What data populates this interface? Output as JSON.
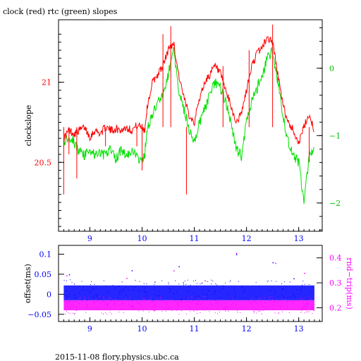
{
  "title": "clock (red) rtc (green) slopes",
  "footer": "2015-11-08 flory.physics.ubc.ca",
  "colors": {
    "red": "#ff0000",
    "green": "#00e000",
    "blue": "#0000ff",
    "magenta": "#ff00ff",
    "axis": "#000000"
  },
  "chart_data": [
    {
      "type": "line",
      "title": "clock (red) rtc (green) slopes",
      "ylabel": "clockslope",
      "xlim": [
        8.4,
        13.45
      ],
      "ylim": [
        20.07,
        21.39
      ],
      "y2lim": [
        -2.42,
        0.72
      ],
      "x_ticks": [
        9,
        10,
        11,
        12,
        13
      ],
      "y_ticks": [
        20.5,
        21
      ],
      "y2_ticks": [
        -2,
        -1,
        0
      ],
      "grid": false,
      "series": [
        {
          "name": "clock",
          "color": "#ff0000",
          "axis": "left",
          "x": [
            8.5,
            8.6,
            8.7,
            8.8,
            8.9,
            9.0,
            9.1,
            9.2,
            9.3,
            9.4,
            9.5,
            9.6,
            9.7,
            9.8,
            9.9,
            10.0,
            10.05,
            10.1,
            10.2,
            10.3,
            10.4,
            10.5,
            10.6,
            10.7,
            10.8,
            10.9,
            11.0,
            11.1,
            11.2,
            11.3,
            11.4,
            11.5,
            11.6,
            11.7,
            11.8,
            11.9,
            12.0,
            12.1,
            12.2,
            12.3,
            12.4,
            12.5,
            12.6,
            12.7,
            12.8,
            12.9,
            13.0,
            13.1,
            13.2,
            13.3
          ],
          "values": [
            20.65,
            20.7,
            20.68,
            20.7,
            20.72,
            20.66,
            20.7,
            20.68,
            20.72,
            20.7,
            20.71,
            20.7,
            20.72,
            20.7,
            20.73,
            20.72,
            20.7,
            20.85,
            21.0,
            21.05,
            21.1,
            21.2,
            21.25,
            21.05,
            20.9,
            20.8,
            20.75,
            20.9,
            21.0,
            21.05,
            21.1,
            21.05,
            20.95,
            20.85,
            20.75,
            20.8,
            20.95,
            21.1,
            21.18,
            21.22,
            21.28,
            21.25,
            21.05,
            20.85,
            20.75,
            20.7,
            20.62,
            20.72,
            20.8,
            20.7
          ]
        },
        {
          "name": "rtc",
          "color": "#00e000",
          "axis": "right",
          "x": [
            8.5,
            8.6,
            8.7,
            8.8,
            8.9,
            9.0,
            9.1,
            9.2,
            9.3,
            9.4,
            9.5,
            9.6,
            9.7,
            9.8,
            9.9,
            10.0,
            10.05,
            10.1,
            10.2,
            10.3,
            10.4,
            10.5,
            10.6,
            10.7,
            10.8,
            10.9,
            11.0,
            11.1,
            11.2,
            11.3,
            11.4,
            11.5,
            11.6,
            11.7,
            11.8,
            11.9,
            12.0,
            12.1,
            12.2,
            12.3,
            12.4,
            12.5,
            12.6,
            12.7,
            12.8,
            12.9,
            13.0,
            13.1,
            13.2,
            13.3
          ],
          "values": [
            -1.1,
            -1.0,
            -1.1,
            -1.25,
            -1.3,
            -1.2,
            -1.3,
            -1.25,
            -1.3,
            -1.2,
            -1.35,
            -1.2,
            -1.3,
            -1.25,
            -1.3,
            -1.4,
            -1.3,
            -0.9,
            -0.7,
            -0.5,
            -0.4,
            -0.1,
            0.3,
            -0.3,
            -0.6,
            -0.9,
            -1.1,
            -0.8,
            -0.6,
            -0.4,
            -0.2,
            -0.3,
            -0.5,
            -0.8,
            -1.2,
            -1.3,
            -0.8,
            -0.5,
            -0.3,
            -0.1,
            0.15,
            0.25,
            -0.2,
            -0.7,
            -1.1,
            -1.3,
            -1.4,
            -2.0,
            -1.3,
            -1.2
          ]
        }
      ]
    },
    {
      "type": "scatter",
      "ylabel": "offset(ms)",
      "y2label": "rnd−trip(ms)",
      "xlim": [
        8.4,
        13.45
      ],
      "ylim": [
        -0.068,
        0.122
      ],
      "y2lim": [
        0.145,
        0.45
      ],
      "x_ticks": [
        9,
        10,
        11,
        12,
        13
      ],
      "y_ticks": [
        -0.05,
        0,
        0.05,
        0.1
      ],
      "y_tick_labels": [
        "−0.05",
        "0",
        "0.05",
        "0.1"
      ],
      "y2_ticks": [
        0.2,
        0.3,
        0.4
      ],
      "grid": false,
      "series": [
        {
          "name": "offset",
          "color": "#0000ff",
          "axis": "left",
          "x_range": [
            8.5,
            13.3
          ],
          "band": [
            -0.015,
            0.022
          ],
          "outliers": [
            [
              8.6,
              0.05
            ],
            [
              9.8,
              0.06
            ],
            [
              10.7,
              0.07
            ],
            [
              11.8,
              0.1
            ],
            [
              12.5,
              0.08
            ],
            [
              12.9,
              0.04
            ]
          ]
        },
        {
          "name": "rnd-trip",
          "color": "#ff00ff",
          "axis": "right",
          "x_range": [
            8.5,
            13.3
          ],
          "band": [
            0.19,
            0.23
          ],
          "outliers": [
            [
              8.55,
              0.33
            ],
            [
              9.7,
              0.32
            ],
            [
              10.6,
              0.35
            ],
            [
              11.2,
              0.31
            ],
            [
              11.8,
              0.42
            ],
            [
              12.55,
              0.38
            ],
            [
              13.1,
              0.34
            ]
          ]
        }
      ]
    }
  ]
}
